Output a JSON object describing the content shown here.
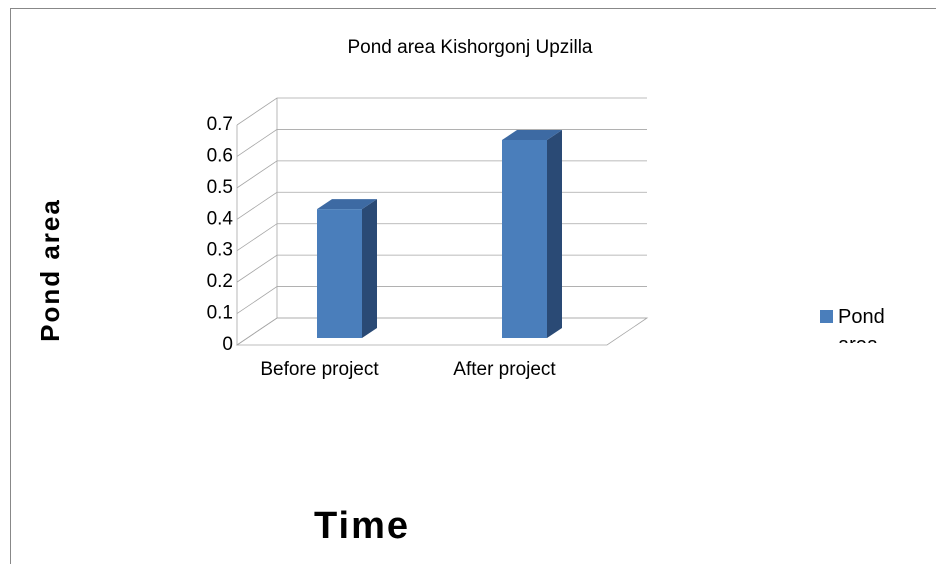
{
  "chart_data": {
    "type": "bar3d",
    "title": "Pond area Kishorgonj Upzilla",
    "y_label": "Pond area",
    "x_label": "Time",
    "categories": [
      "Before project",
      "After project"
    ],
    "series": [
      {
        "name": "Pond area",
        "color": "#4a7ebb",
        "values": [
          0.41,
          0.63
        ]
      }
    ],
    "ylim": [
      0,
      0.7
    ],
    "yticks": [
      0,
      0.1,
      0.2,
      0.3,
      0.4,
      0.5,
      0.6,
      0.7
    ],
    "grid": true,
    "legend": "right"
  }
}
